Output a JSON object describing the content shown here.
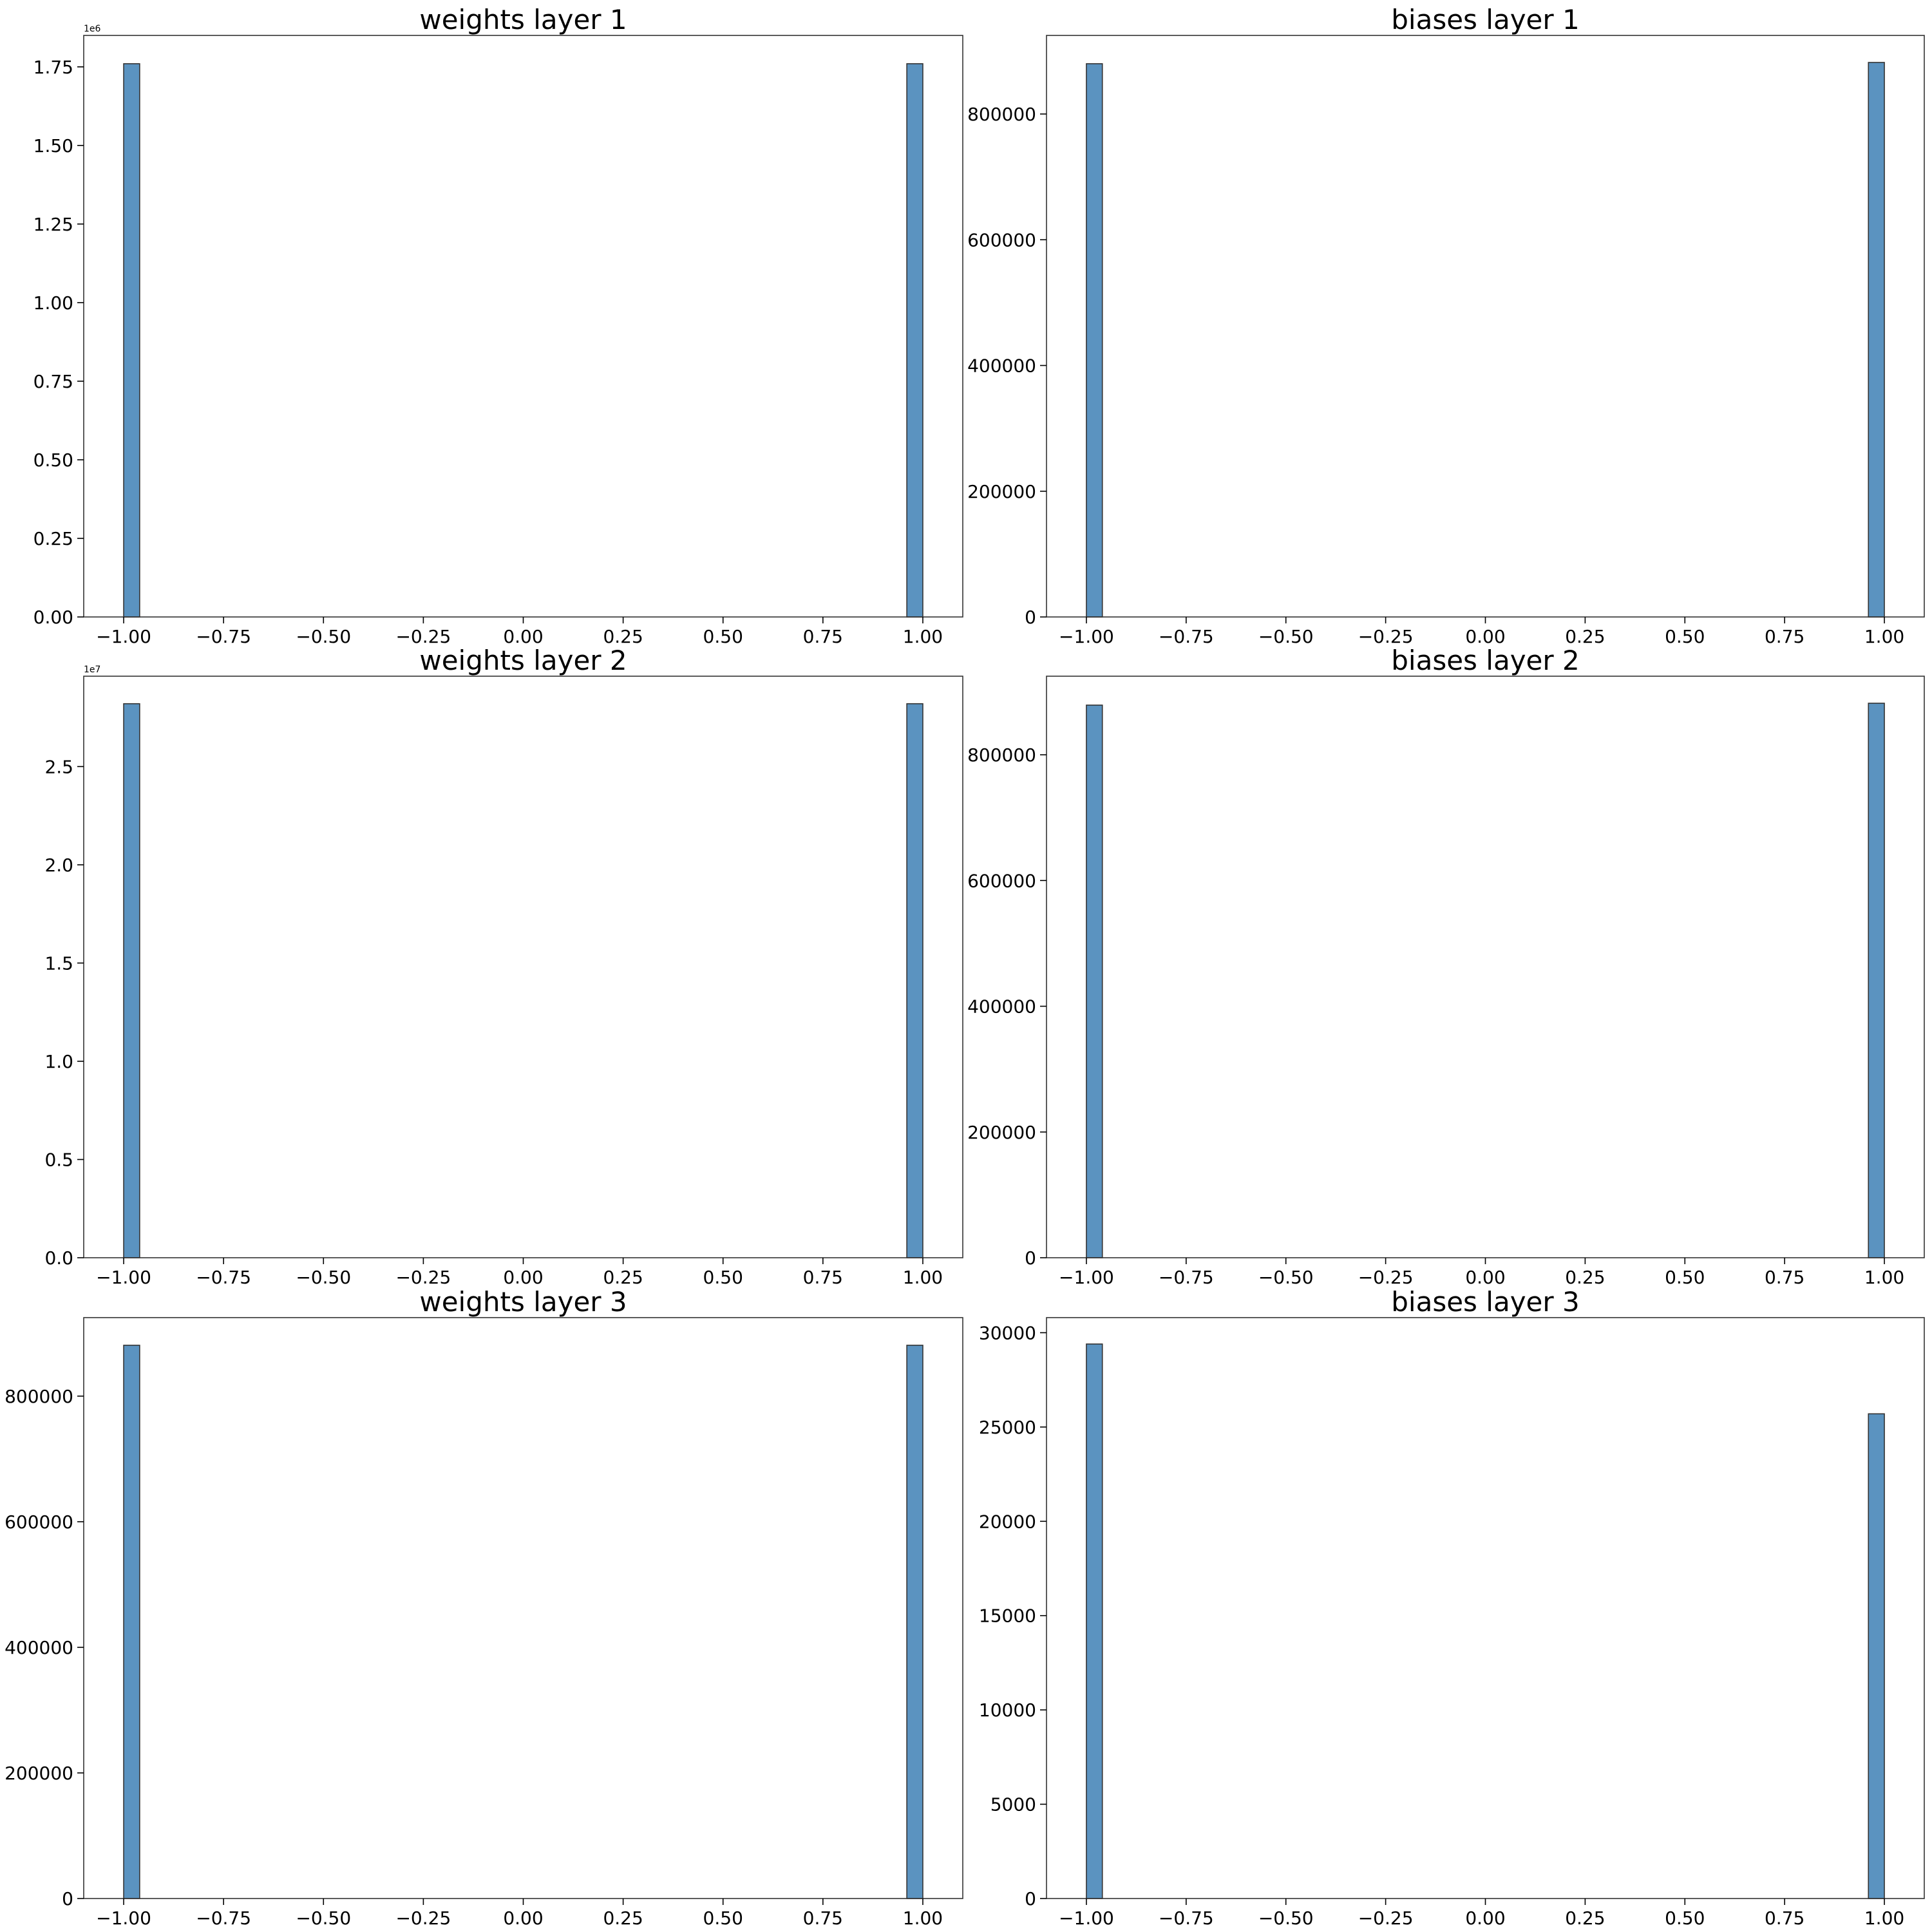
{
  "chart_data": [
    {
      "type": "bar",
      "title": "weights layer 1",
      "xlim": [
        -1.1,
        1.1
      ],
      "ylim": [
        0,
        1.85
      ],
      "x_ticks": [
        "−1.00",
        "−0.75",
        "−0.50",
        "−0.25",
        "0.00",
        "0.25",
        "0.50",
        "0.75",
        "1.00"
      ],
      "y_ticks": [
        "0.00",
        "0.25",
        "0.50",
        "0.75",
        "1.00",
        "1.25",
        "1.50",
        "1.75"
      ],
      "y_multiplier": "1e6",
      "bars": [
        {
          "x_start": -1.0,
          "x_end": -0.96,
          "value": 1.76
        },
        {
          "x_start": 0.96,
          "x_end": 1.0,
          "value": 1.76
        }
      ],
      "bar_color": "#5b93c0",
      "edge_color": "#333333"
    },
    {
      "type": "bar",
      "title": "biases layer 1",
      "xlim": [
        -1.1,
        1.1
      ],
      "ylim": [
        0,
        925000
      ],
      "x_ticks": [
        "−1.00",
        "−0.75",
        "−0.50",
        "−0.25",
        "0.00",
        "0.25",
        "0.50",
        "0.75",
        "1.00"
      ],
      "y_ticks": [
        "0",
        "200000",
        "400000",
        "600000",
        "800000"
      ],
      "y_multiplier": "",
      "bars": [
        {
          "x_start": -1.0,
          "x_end": -0.96,
          "value": 880000
        },
        {
          "x_start": 0.96,
          "x_end": 1.0,
          "value": 882000
        }
      ],
      "bar_color": "#5b93c0",
      "edge_color": "#333333"
    },
    {
      "type": "bar",
      "title": "weights layer 2",
      "xlim": [
        -1.1,
        1.1
      ],
      "ylim": [
        0,
        2.96
      ],
      "x_ticks": [
        "−1.00",
        "−0.75",
        "−0.50",
        "−0.25",
        "0.00",
        "0.25",
        "0.50",
        "0.75",
        "1.00"
      ],
      "y_ticks": [
        "0.0",
        "0.5",
        "1.0",
        "1.5",
        "2.0",
        "2.5"
      ],
      "y_multiplier": "1e7",
      "bars": [
        {
          "x_start": -1.0,
          "x_end": -0.96,
          "value": 2.82
        },
        {
          "x_start": 0.96,
          "x_end": 1.0,
          "value": 2.82
        }
      ],
      "bar_color": "#5b93c0",
      "edge_color": "#333333"
    },
    {
      "type": "bar",
      "title": "biases layer 2",
      "xlim": [
        -1.1,
        1.1
      ],
      "ylim": [
        0,
        925000
      ],
      "x_ticks": [
        "−1.00",
        "−0.75",
        "−0.50",
        "−0.25",
        "0.00",
        "0.25",
        "0.50",
        "0.75",
        "1.00"
      ],
      "y_ticks": [
        "0",
        "200000",
        "400000",
        "600000",
        "800000"
      ],
      "y_multiplier": "",
      "bars": [
        {
          "x_start": -1.0,
          "x_end": -0.96,
          "value": 879000
        },
        {
          "x_start": 0.96,
          "x_end": 1.0,
          "value": 882000
        }
      ],
      "bar_color": "#5b93c0",
      "edge_color": "#333333"
    },
    {
      "type": "bar",
      "title": "weights layer 3",
      "xlim": [
        -1.1,
        1.1
      ],
      "ylim": [
        0,
        925000
      ],
      "x_ticks": [
        "−1.00",
        "−0.75",
        "−0.50",
        "−0.25",
        "0.00",
        "0.25",
        "0.50",
        "0.75",
        "1.00"
      ],
      "y_ticks": [
        "0",
        "200000",
        "400000",
        "600000",
        "800000"
      ],
      "y_multiplier": "",
      "bars": [
        {
          "x_start": -1.0,
          "x_end": -0.96,
          "value": 881000
        },
        {
          "x_start": 0.96,
          "x_end": 1.0,
          "value": 881000
        }
      ],
      "bar_color": "#5b93c0",
      "edge_color": "#333333"
    },
    {
      "type": "bar",
      "title": "biases layer 3",
      "xlim": [
        -1.1,
        1.1
      ],
      "ylim": [
        0,
        30800
      ],
      "x_ticks": [
        "−1.00",
        "−0.75",
        "−0.50",
        "−0.25",
        "0.00",
        "0.25",
        "0.50",
        "0.75",
        "1.00"
      ],
      "y_ticks": [
        "0",
        "5000",
        "10000",
        "15000",
        "20000",
        "25000",
        "30000"
      ],
      "y_multiplier": "",
      "bars": [
        {
          "x_start": -1.0,
          "x_end": -0.96,
          "value": 29400
        },
        {
          "x_start": 0.96,
          "x_end": 1.0,
          "value": 25700
        }
      ],
      "bar_color": "#5b93c0",
      "edge_color": "#333333"
    }
  ]
}
